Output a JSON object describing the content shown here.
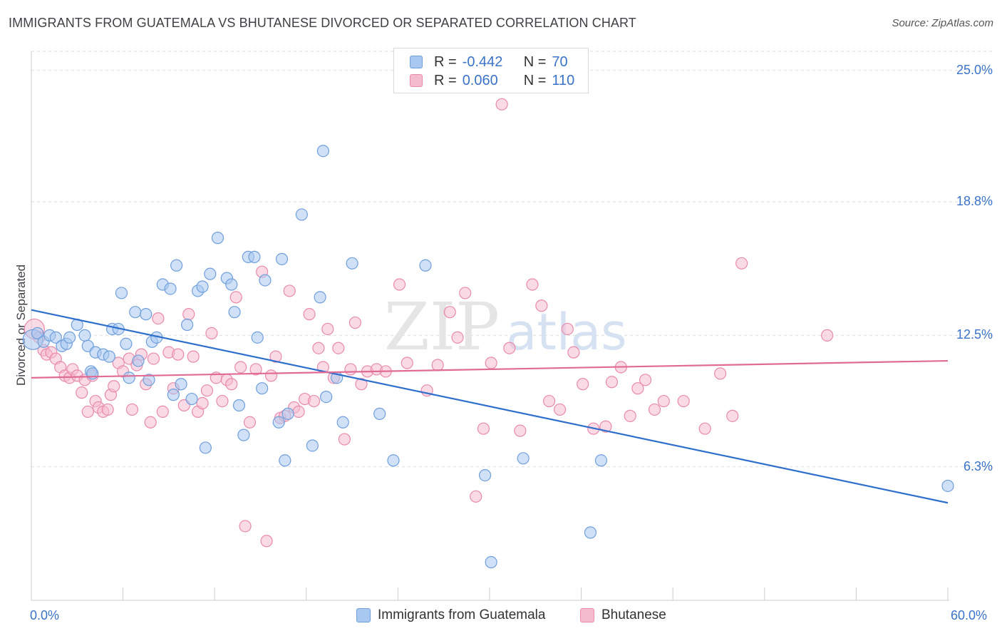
{
  "title": "IMMIGRANTS FROM GUATEMALA VS BHUTANESE DIVORCED OR SEPARATED CORRELATION CHART",
  "source": "Source: ZipAtlas.com",
  "watermark": {
    "zip": "ZIP",
    "atlas": "atlas"
  },
  "colors": {
    "blue_fill": "#a9c8f0",
    "blue_stroke": "#6f9fdc",
    "blue_line": "#2f6fcc",
    "pink_fill": "#f5bcd0",
    "pink_stroke": "#e88aab",
    "pink_line": "#e06c96",
    "axis_text": "#3a73c8",
    "grid": "#dddddd"
  },
  "legend": {
    "rows": [
      {
        "r_label": "R =",
        "r_value": "-0.442",
        "n_label": "N =",
        "n_value": "70"
      },
      {
        "r_label": "R =",
        "r_value": "0.060",
        "n_label": "N =",
        "n_value": "110"
      }
    ]
  },
  "bottom_legend": {
    "series1": "Immigrants from Guatemala",
    "series2": "Bhutanese"
  },
  "chart_data": {
    "type": "scatter",
    "title": "IMMIGRANTS FROM GUATEMALA VS BHUTANESE DIVORCED OR SEPARATED CORRELATION CHART",
    "xlabel": "",
    "ylabel": "Divorced or Separated",
    "xlim": [
      0,
      60
    ],
    "ylim": [
      0,
      25.9
    ],
    "x_tick_labels": {
      "min": "0.0%",
      "max": "60.0%"
    },
    "y_ticks": [
      6.3,
      12.5,
      18.8,
      25.0
    ],
    "y_tick_labels": [
      "6.3%",
      "12.5%",
      "18.8%",
      "25.0%"
    ],
    "grid": true,
    "legend_position": "top-center",
    "series": [
      {
        "name": "Immigrants from Guatemala",
        "R": -0.442,
        "N": 70,
        "trend": {
          "x0": 0,
          "y0": 13.7,
          "x1": 60,
          "y1": 4.6
        },
        "points": [
          [
            0.1,
            12.3
          ],
          [
            0.4,
            12.6
          ],
          [
            0.8,
            12.2
          ],
          [
            1.2,
            12.5
          ],
          [
            1.6,
            12.4
          ],
          [
            2.0,
            12.0
          ],
          [
            2.3,
            12.1
          ],
          [
            2.5,
            12.4
          ],
          [
            3.0,
            13.0
          ],
          [
            3.5,
            12.5
          ],
          [
            3.7,
            12.0
          ],
          [
            3.9,
            10.8
          ],
          [
            4.0,
            10.7
          ],
          [
            4.2,
            11.7
          ],
          [
            4.7,
            11.6
          ],
          [
            5.1,
            11.5
          ],
          [
            5.3,
            12.8
          ],
          [
            5.7,
            12.8
          ],
          [
            5.9,
            14.5
          ],
          [
            6.2,
            12.1
          ],
          [
            6.4,
            10.5
          ],
          [
            6.8,
            13.6
          ],
          [
            7.0,
            11.3
          ],
          [
            7.5,
            13.5
          ],
          [
            7.7,
            10.4
          ],
          [
            7.9,
            12.2
          ],
          [
            8.2,
            12.4
          ],
          [
            8.6,
            14.9
          ],
          [
            9.1,
            14.7
          ],
          [
            9.3,
            9.7
          ],
          [
            9.5,
            15.8
          ],
          [
            9.8,
            10.2
          ],
          [
            10.2,
            13.0
          ],
          [
            10.5,
            9.5
          ],
          [
            10.9,
            14.6
          ],
          [
            11.2,
            14.8
          ],
          [
            11.4,
            7.2
          ],
          [
            11.7,
            15.4
          ],
          [
            12.2,
            17.1
          ],
          [
            12.8,
            15.2
          ],
          [
            13.1,
            14.9
          ],
          [
            13.3,
            13.6
          ],
          [
            13.6,
            9.2
          ],
          [
            13.9,
            7.8
          ],
          [
            14.2,
            16.2
          ],
          [
            14.6,
            16.2
          ],
          [
            14.8,
            12.4
          ],
          [
            15.1,
            10.0
          ],
          [
            15.3,
            15.1
          ],
          [
            16.2,
            8.4
          ],
          [
            16.4,
            16.1
          ],
          [
            16.6,
            6.6
          ],
          [
            16.8,
            8.8
          ],
          [
            17.7,
            18.2
          ],
          [
            18.4,
            7.3
          ],
          [
            18.9,
            14.3
          ],
          [
            19.1,
            21.2
          ],
          [
            19.3,
            9.6
          ],
          [
            20.0,
            10.5
          ],
          [
            20.4,
            8.4
          ],
          [
            21.0,
            15.9
          ],
          [
            22.8,
            8.8
          ],
          [
            23.7,
            6.6
          ],
          [
            25.8,
            15.8
          ],
          [
            29.7,
            5.9
          ],
          [
            30.1,
            1.8
          ],
          [
            32.2,
            6.7
          ],
          [
            36.6,
            3.2
          ],
          [
            37.3,
            6.6
          ],
          [
            60.0,
            5.4
          ]
        ]
      },
      {
        "name": "Bhutanese",
        "R": 0.06,
        "N": 110,
        "trend": {
          "x0": 0,
          "y0": 10.5,
          "x1": 60,
          "y1": 11.3
        },
        "points": [
          [
            0.2,
            12.8
          ],
          [
            0.5,
            12.4
          ],
          [
            0.8,
            11.8
          ],
          [
            1.0,
            11.6
          ],
          [
            1.3,
            11.7
          ],
          [
            1.6,
            11.4
          ],
          [
            1.9,
            11.0
          ],
          [
            2.2,
            10.6
          ],
          [
            2.5,
            10.5
          ],
          [
            2.7,
            10.9
          ],
          [
            3.0,
            10.6
          ],
          [
            3.3,
            9.8
          ],
          [
            3.5,
            10.4
          ],
          [
            3.7,
            8.9
          ],
          [
            4.0,
            10.6
          ],
          [
            4.2,
            9.4
          ],
          [
            4.4,
            9.1
          ],
          [
            4.7,
            8.9
          ],
          [
            5.0,
            9.0
          ],
          [
            5.2,
            9.7
          ],
          [
            5.4,
            10.1
          ],
          [
            5.7,
            11.2
          ],
          [
            6.0,
            10.8
          ],
          [
            6.4,
            11.4
          ],
          [
            6.6,
            9.0
          ],
          [
            6.9,
            11.1
          ],
          [
            7.2,
            11.6
          ],
          [
            7.5,
            10.2
          ],
          [
            7.8,
            8.4
          ],
          [
            8.0,
            11.4
          ],
          [
            8.3,
            13.3
          ],
          [
            8.6,
            8.9
          ],
          [
            9.0,
            11.7
          ],
          [
            9.3,
            10.0
          ],
          [
            9.6,
            11.6
          ],
          [
            10.0,
            9.2
          ],
          [
            10.3,
            13.5
          ],
          [
            10.6,
            11.5
          ],
          [
            10.9,
            8.9
          ],
          [
            11.2,
            9.3
          ],
          [
            11.5,
            9.9
          ],
          [
            11.8,
            12.6
          ],
          [
            12.1,
            10.5
          ],
          [
            12.5,
            9.4
          ],
          [
            12.8,
            10.4
          ],
          [
            13.1,
            10.2
          ],
          [
            13.4,
            14.3
          ],
          [
            13.7,
            11.0
          ],
          [
            14.0,
            3.5
          ],
          [
            14.3,
            8.4
          ],
          [
            14.7,
            10.9
          ],
          [
            15.1,
            15.5
          ],
          [
            15.4,
            2.8
          ],
          [
            15.7,
            10.6
          ],
          [
            16.0,
            11.5
          ],
          [
            16.3,
            8.6
          ],
          [
            16.6,
            8.7
          ],
          [
            16.9,
            14.6
          ],
          [
            17.2,
            9.1
          ],
          [
            17.5,
            8.9
          ],
          [
            17.9,
            9.5
          ],
          [
            18.2,
            13.5
          ],
          [
            18.5,
            9.4
          ],
          [
            18.8,
            11.9
          ],
          [
            19.1,
            11.0
          ],
          [
            19.4,
            12.8
          ],
          [
            19.8,
            10.5
          ],
          [
            20.1,
            11.9
          ],
          [
            20.5,
            7.6
          ],
          [
            20.9,
            10.9
          ],
          [
            21.2,
            13.1
          ],
          [
            21.6,
            10.2
          ],
          [
            22.0,
            10.8
          ],
          [
            22.6,
            10.9
          ],
          [
            23.2,
            10.8
          ],
          [
            24.1,
            14.9
          ],
          [
            24.6,
            11.2
          ],
          [
            25.9,
            9.9
          ],
          [
            26.6,
            11.1
          ],
          [
            27.4,
            13.6
          ],
          [
            27.9,
            12.4
          ],
          [
            28.4,
            14.5
          ],
          [
            29.1,
            4.9
          ],
          [
            29.6,
            8.1
          ],
          [
            30.1,
            11.2
          ],
          [
            30.8,
            23.4
          ],
          [
            31.3,
            11.9
          ],
          [
            32.0,
            8.0
          ],
          [
            32.8,
            14.9
          ],
          [
            33.4,
            13.9
          ],
          [
            33.9,
            9.4
          ],
          [
            34.6,
            9.0
          ],
          [
            35.1,
            12.8
          ],
          [
            35.5,
            11.7
          ],
          [
            36.1,
            10.2
          ],
          [
            36.8,
            8.1
          ],
          [
            37.6,
            8.2
          ],
          [
            38.0,
            10.3
          ],
          [
            38.6,
            11.0
          ],
          [
            39.2,
            8.7
          ],
          [
            39.7,
            10.0
          ],
          [
            40.2,
            10.4
          ],
          [
            40.8,
            9.0
          ],
          [
            41.4,
            9.4
          ],
          [
            42.7,
            9.4
          ],
          [
            44.1,
            8.1
          ],
          [
            45.1,
            10.7
          ],
          [
            45.9,
            8.7
          ],
          [
            46.5,
            15.9
          ],
          [
            52.1,
            12.5
          ]
        ]
      }
    ]
  }
}
